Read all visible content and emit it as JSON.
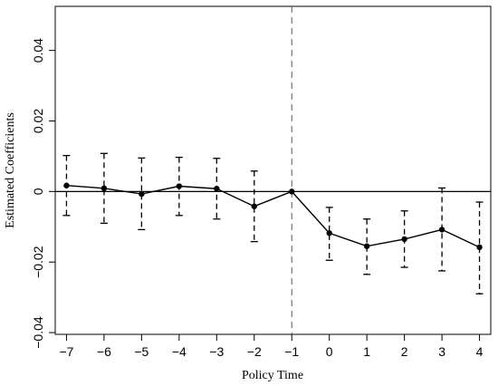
{
  "chart_data": {
    "type": "line",
    "title": "",
    "xlabel": "Policy Time",
    "ylabel": "Estimated Coefficients",
    "xlim": [
      -7.3,
      4.3
    ],
    "ylim": [
      -0.0405,
      0.0525
    ],
    "x_ticks": [
      -7,
      -6,
      -5,
      -4,
      -3,
      -2,
      -1,
      0,
      1,
      2,
      3,
      4
    ],
    "x_tick_labels": [
      "−7",
      "−6",
      "−5",
      "−4",
      "−3",
      "−2",
      "−1",
      "0",
      "1",
      "2",
      "3",
      "4"
    ],
    "y_ticks": [
      -0.04,
      -0.02,
      0,
      0.02,
      0.04
    ],
    "y_tick_labels": [
      "−0.04",
      "−0.02",
      "0",
      "0.02",
      "0.04"
    ],
    "reference_lines": {
      "horizontal_y": 0,
      "vertical_x": -1
    },
    "grid": false,
    "series": [
      {
        "x": [
          -7,
          -6,
          -5,
          -4,
          -3,
          -2,
          -1,
          0,
          1,
          2,
          3,
          4
        ],
        "y": [
          0.0017,
          0.0009,
          -0.0007,
          0.0015,
          0.0008,
          -0.0042,
          0.0,
          -0.0118,
          -0.0155,
          -0.0135,
          -0.0108,
          -0.0158
        ],
        "ci_lower": [
          -0.0068,
          -0.009,
          -0.0108,
          -0.0068,
          -0.0078,
          -0.0142,
          0.0,
          -0.0195,
          -0.0235,
          -0.0215,
          -0.0225,
          -0.029
        ],
        "ci_upper": [
          0.0102,
          0.0108,
          0.0095,
          0.0097,
          0.0094,
          0.0058,
          0.0,
          -0.0045,
          -0.0078,
          -0.0055,
          0.001,
          -0.003
        ]
      }
    ]
  }
}
